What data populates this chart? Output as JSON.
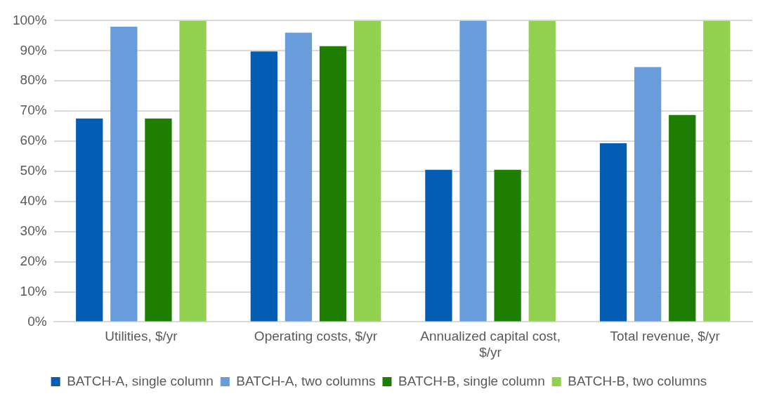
{
  "chart_data": {
    "type": "bar",
    "categories": [
      "Utilities, $/yr",
      "Operating costs, $/yr",
      "Annualized capital cost, $/yr",
      "Total revenue, $/yr"
    ],
    "series": [
      {
        "name": "BATCH-A, single column",
        "color": "#035eb3",
        "values": [
          67.5,
          89.8,
          50.5,
          59.3
        ]
      },
      {
        "name": "BATCH-A, two columns",
        "color": "#689cdb",
        "values": [
          98,
          96,
          100,
          84.6
        ]
      },
      {
        "name": "BATCH-B, single column",
        "color": "#1e7e02",
        "values": [
          67.5,
          91.5,
          50.5,
          68.7
        ]
      },
      {
        "name": "BATCH-B, two columns",
        "color": "#92d050",
        "values": [
          100,
          100,
          100,
          100
        ]
      }
    ],
    "ylim": [
      0,
      100
    ],
    "yticks": [
      {
        "value": 0,
        "label": "0%"
      },
      {
        "value": 10,
        "label": "10%"
      },
      {
        "value": 20,
        "label": "20%"
      },
      {
        "value": 30,
        "label": "30%"
      },
      {
        "value": 40,
        "label": "40%"
      },
      {
        "value": 50,
        "label": "50%"
      },
      {
        "value": 60,
        "label": "60%"
      },
      {
        "value": 70,
        "label": "70%"
      },
      {
        "value": 80,
        "label": "80%"
      },
      {
        "value": 90,
        "label": "90%"
      },
      {
        "value": 100,
        "label": "100%"
      }
    ],
    "grid": "y",
    "legend": "bottom"
  }
}
